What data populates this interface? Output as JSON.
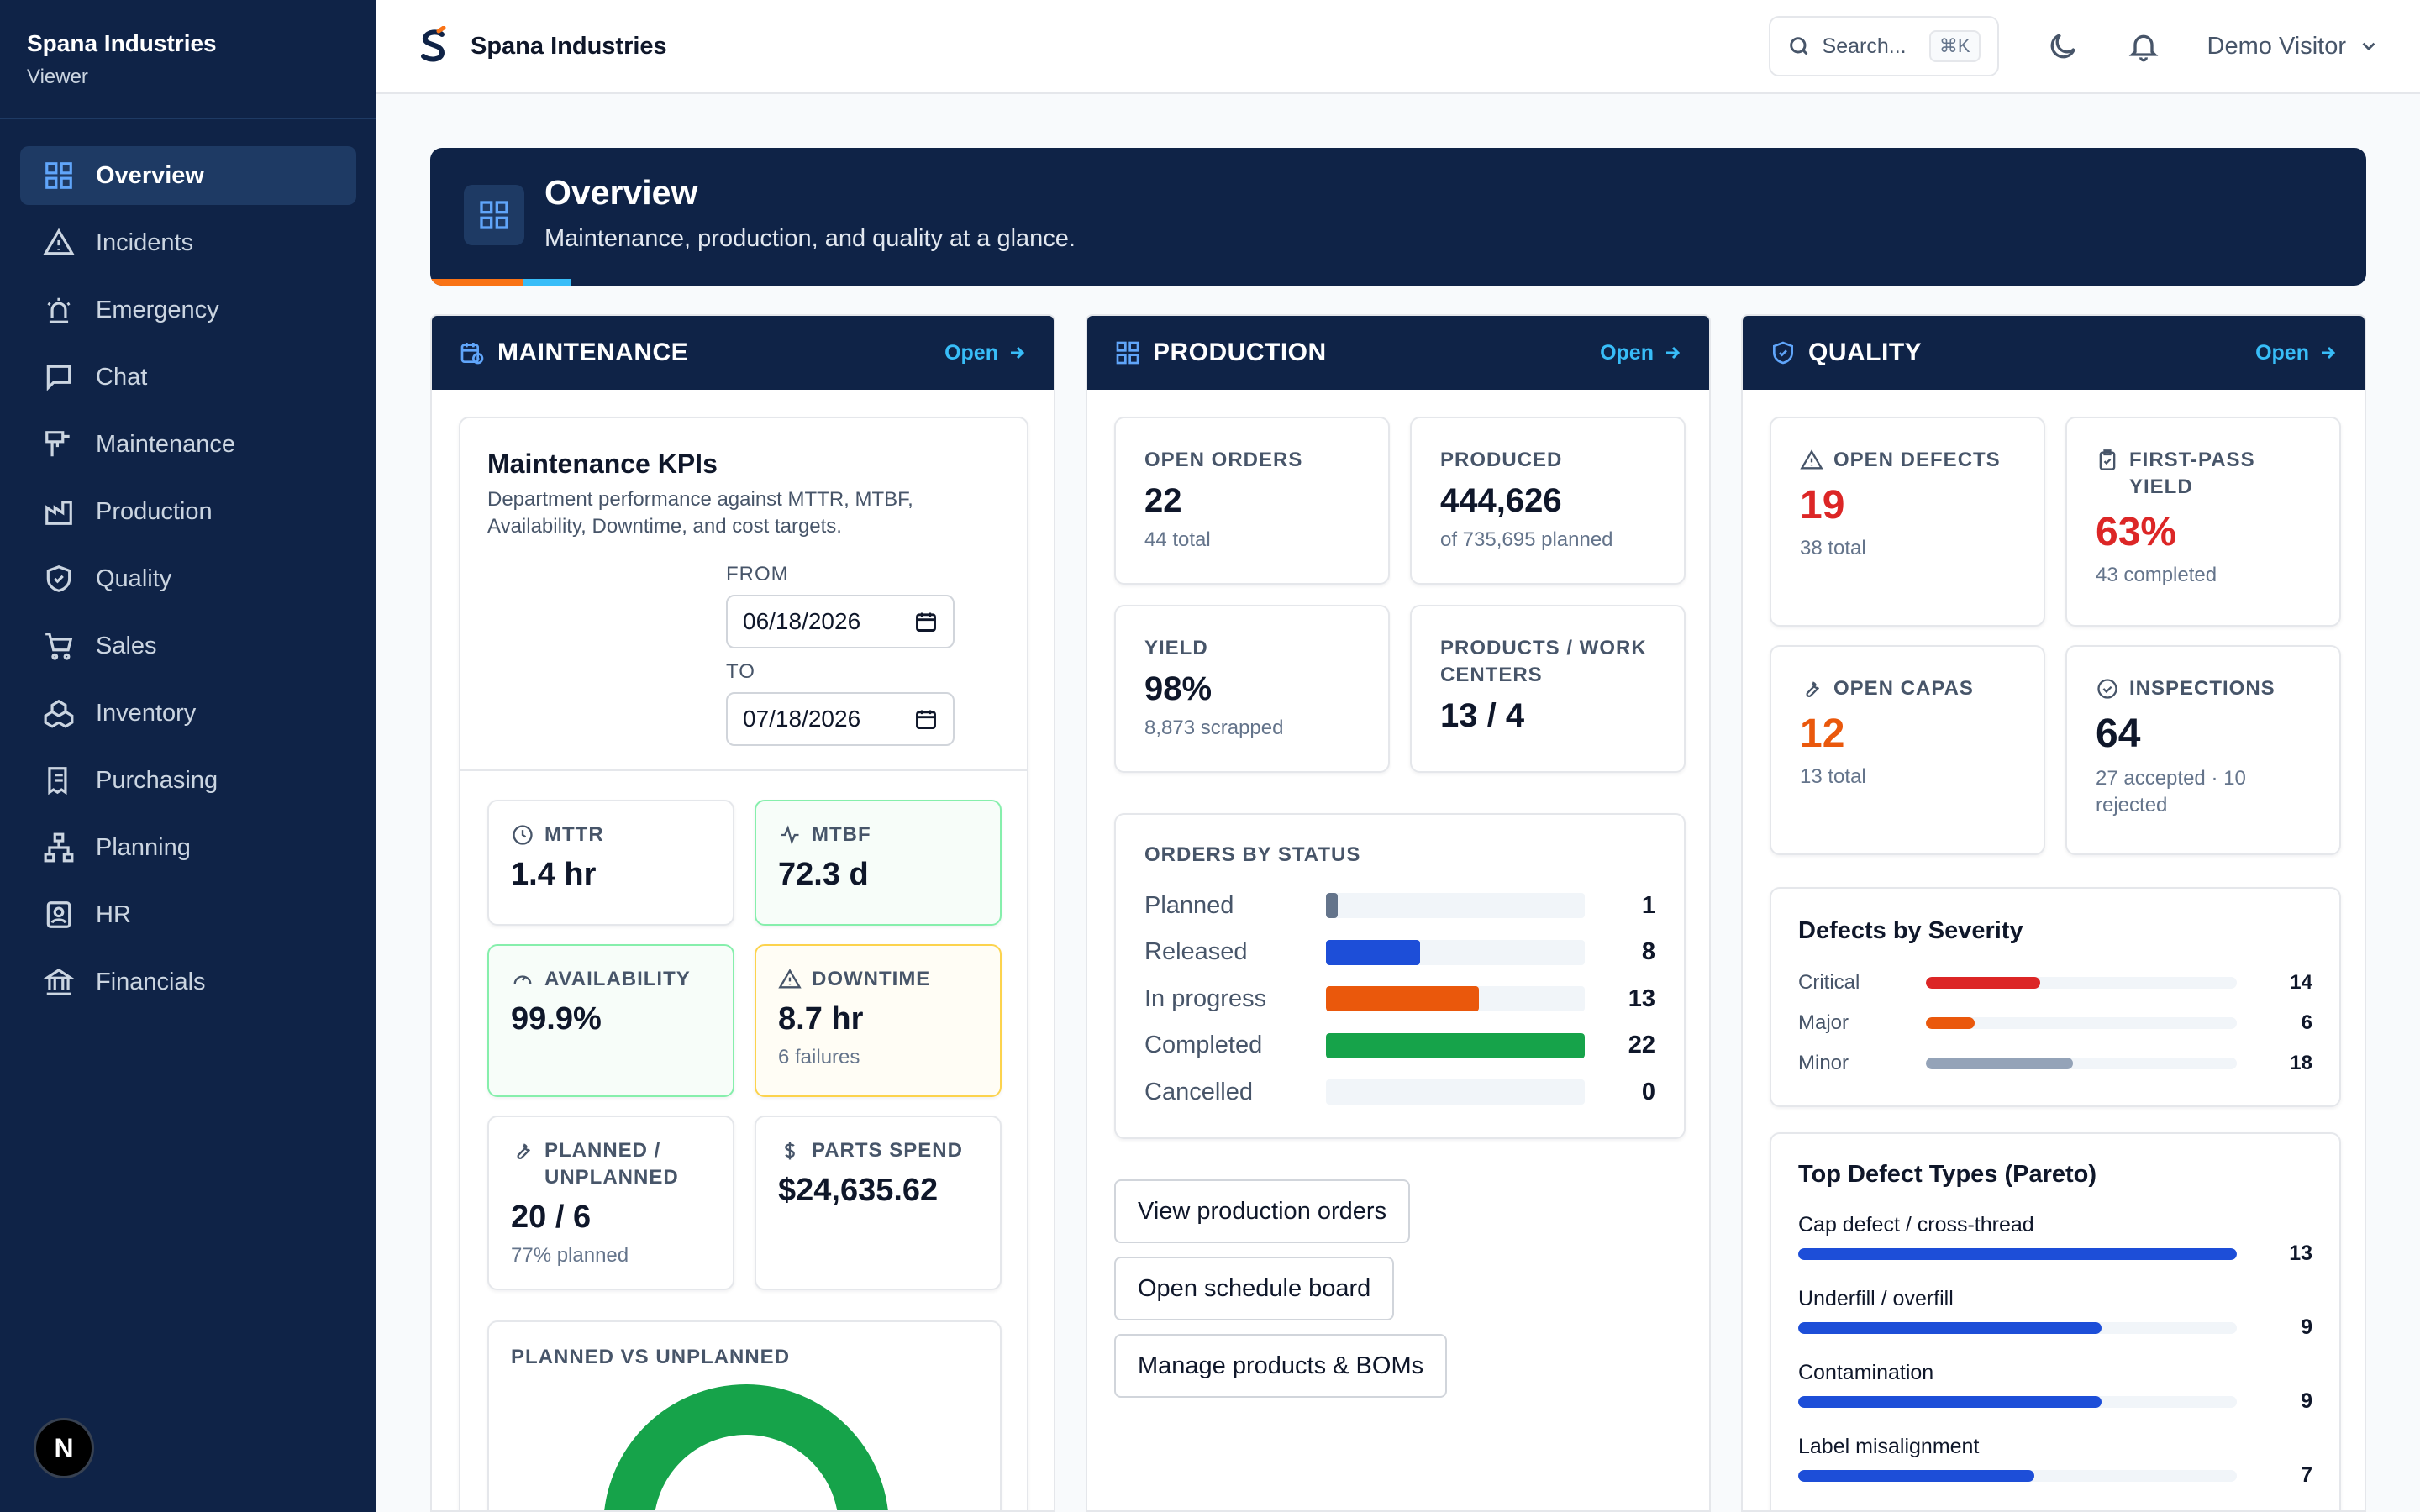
{
  "brand": {
    "name": "Spana Industries",
    "role": "Viewer"
  },
  "nav": [
    {
      "label": "Overview",
      "icon": "grid-icon",
      "active": true
    },
    {
      "label": "Incidents",
      "icon": "warning-icon"
    },
    {
      "label": "Emergency",
      "icon": "siren-icon"
    },
    {
      "label": "Chat",
      "icon": "chat-icon"
    },
    {
      "label": "Maintenance",
      "icon": "maintenance-icon"
    },
    {
      "label": "Production",
      "icon": "factory-icon"
    },
    {
      "label": "Quality",
      "icon": "shield-icon"
    },
    {
      "label": "Sales",
      "icon": "cart-icon"
    },
    {
      "label": "Inventory",
      "icon": "boxes-icon"
    },
    {
      "label": "Purchasing",
      "icon": "receipt-icon"
    },
    {
      "label": "Planning",
      "icon": "network-icon"
    },
    {
      "label": "HR",
      "icon": "badge-icon"
    },
    {
      "label": "Financials",
      "icon": "bank-icon"
    }
  ],
  "header": {
    "title": "Spana Industries",
    "search_placeholder": "Search...",
    "shortcut": "⌘K",
    "user": "Demo Visitor"
  },
  "banner": {
    "title": "Overview",
    "subtitle": "Maintenance, production, and quality at a glance."
  },
  "maintenance": {
    "title": "MAINTENANCE",
    "open": "Open",
    "kpi_title": "Maintenance KPIs",
    "kpi_desc": "Department performance against MTTR, MTBF, Availability, Downtime, and cost targets.",
    "from_label": "FROM",
    "from_value": "06/18/2026",
    "to_label": "TO",
    "to_value": "07/18/2026",
    "mttr": {
      "label": "MTTR",
      "value": "1.4 hr"
    },
    "mtbf": {
      "label": "MTBF",
      "value": "72.3 d"
    },
    "availability": {
      "label": "AVAILABILITY",
      "value": "99.9%"
    },
    "downtime": {
      "label": "DOWNTIME",
      "value": "8.7 hr",
      "sub": "6 failures"
    },
    "planned": {
      "label": "PLANNED / UNPLANNED",
      "value": "20 / 6",
      "sub": "77% planned"
    },
    "parts": {
      "label": "PARTS SPEND",
      "value": "$24,635.62"
    },
    "chart_label": "PLANNED VS UNPLANNED"
  },
  "production": {
    "title": "PRODUCTION",
    "open": "Open",
    "open_orders": {
      "label": "OPEN ORDERS",
      "value": "22",
      "sub": "44 total"
    },
    "produced": {
      "label": "PRODUCED",
      "value": "444,626",
      "sub": "of 735,695 planned"
    },
    "yield": {
      "label": "YIELD",
      "value": "98%",
      "sub": "8,873 scrapped"
    },
    "products": {
      "label": "PRODUCTS / WORK CENTERS",
      "value": "13 / 4"
    },
    "status_title": "ORDERS BY STATUS",
    "status": [
      {
        "label": "Planned",
        "value": 1,
        "color": "#64748b"
      },
      {
        "label": "Released",
        "value": 8,
        "color": "#1d4ed8"
      },
      {
        "label": "In progress",
        "value": 13,
        "color": "#ea580c"
      },
      {
        "label": "Completed",
        "value": 22,
        "color": "#16a34a"
      },
      {
        "label": "Cancelled",
        "value": 0,
        "color": "#94a3b8"
      }
    ],
    "buttons": [
      "View production orders",
      "Open schedule board",
      "Manage products & BOMs"
    ]
  },
  "quality": {
    "title": "QUALITY",
    "open": "Open",
    "open_defects": {
      "label": "OPEN DEFECTS",
      "value": "19",
      "sub": "38 total"
    },
    "fpy": {
      "label": "FIRST-PASS YIELD",
      "value": "63%",
      "sub": "43 completed"
    },
    "open_capas": {
      "label": "OPEN CAPAS",
      "value": "12",
      "sub": "13 total"
    },
    "inspections": {
      "label": "INSPECTIONS",
      "value": "64",
      "sub": "27 accepted · 10 rejected"
    },
    "severity_title": "Defects by Severity",
    "severity": [
      {
        "label": "Critical",
        "value": 14,
        "color": "#dc2626"
      },
      {
        "label": "Major",
        "value": 6,
        "color": "#ea580c"
      },
      {
        "label": "Minor",
        "value": 18,
        "color": "#94a3b8"
      }
    ],
    "pareto_title": "Top Defect Types (Pareto)",
    "pareto": [
      {
        "label": "Cap defect / cross-thread",
        "value": 13
      },
      {
        "label": "Underfill / overfill",
        "value": 9
      },
      {
        "label": "Contamination",
        "value": 9
      },
      {
        "label": "Label misalignment",
        "value": 7
      }
    ]
  },
  "colors": {
    "navy": "#0f2347",
    "accent_blue": "#38bdf8",
    "critical_red": "#dc2626",
    "warning_orange": "#ea580c",
    "success_green": "#16a34a"
  }
}
